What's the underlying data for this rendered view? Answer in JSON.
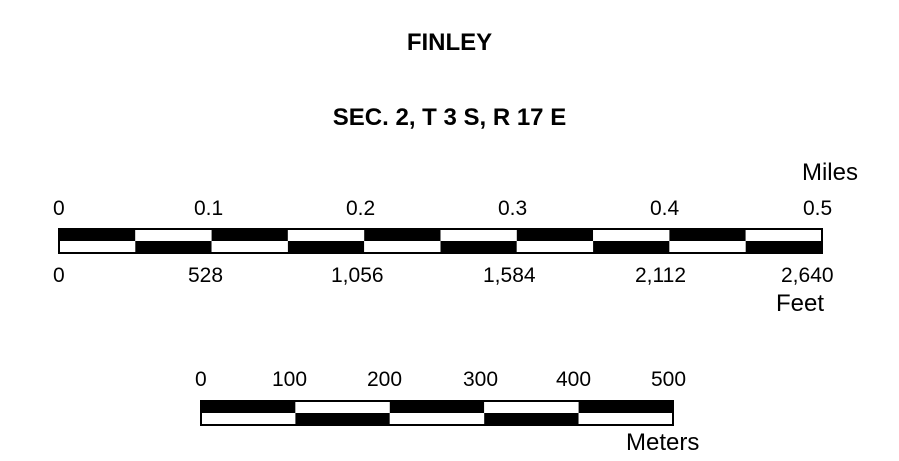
{
  "title": "FINLEY",
  "subtitle": "SEC. 2, T 3 S, R 17 E",
  "scale_bars": {
    "miles": {
      "unit": "Miles",
      "ticks": [
        "0",
        "0.1",
        "0.2",
        "0.3",
        "0.4",
        "0.5"
      ],
      "segments_per_row": 10
    },
    "feet": {
      "unit": "Feet",
      "ticks": [
        "0",
        "528",
        "1,056",
        "1,584",
        "2,112",
        "2,640"
      ]
    },
    "meters": {
      "unit": "Meters",
      "ticks": [
        "0",
        "100",
        "200",
        "300",
        "400",
        "500"
      ],
      "segments_per_row": 5
    }
  },
  "colors": {
    "fill": "#000000",
    "background": "#ffffff"
  }
}
